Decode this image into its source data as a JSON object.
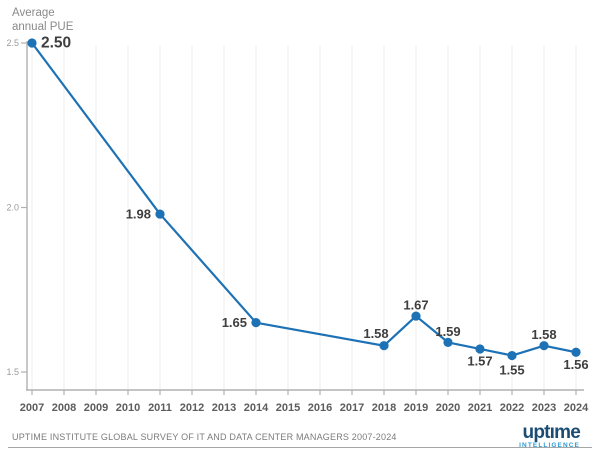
{
  "chart_data": {
    "type": "line",
    "title": "Average annual PUE",
    "title_lines": [
      "Average",
      "annual PUE"
    ],
    "xlabel": "",
    "ylabel": "Average annual PUE",
    "xlim": [
      2007,
      2024
    ],
    "ylim": [
      1.45,
      2.5
    ],
    "grid": "vertical-only",
    "legend": "none",
    "x_ticks": [
      2007,
      2008,
      2009,
      2010,
      2011,
      2012,
      2013,
      2014,
      2015,
      2016,
      2017,
      2018,
      2019,
      2020,
      2021,
      2022,
      2023,
      2024
    ],
    "y_ticks": [
      {
        "value": 2.5,
        "label": "2.5"
      },
      {
        "value": 2.0,
        "label": "2.0"
      },
      {
        "value": 1.5,
        "label": "1.5"
      }
    ],
    "series": [
      {
        "name": "Average annual PUE",
        "points": [
          {
            "year": 2007,
            "value": 2.5,
            "label": "2.50",
            "label_pos": "right-lg"
          },
          {
            "year": 2011,
            "value": 1.98,
            "label": "1.98",
            "label_pos": "left"
          },
          {
            "year": 2014,
            "value": 1.65,
            "label": "1.65",
            "label_pos": "left"
          },
          {
            "year": 2018,
            "value": 1.58,
            "label": "1.58",
            "label_pos": "above-left"
          },
          {
            "year": 2019,
            "value": 1.67,
            "label": "1.67",
            "label_pos": "above"
          },
          {
            "year": 2020,
            "value": 1.59,
            "label": "1.59",
            "label_pos": "above"
          },
          {
            "year": 2021,
            "value": 1.57,
            "label": "1.57",
            "label_pos": "below"
          },
          {
            "year": 2022,
            "value": 1.55,
            "label": "1.55",
            "label_pos": "below-far"
          },
          {
            "year": 2023,
            "value": 1.58,
            "label": "1.58",
            "label_pos": "above"
          },
          {
            "year": 2024,
            "value": 1.56,
            "label": "1.56",
            "label_pos": "below"
          }
        ]
      }
    ],
    "colors": {
      "line": "#1d71b5",
      "marker": "#1d71b5",
      "label": "#3e3e3e",
      "axis": "#b0b0b0",
      "grid": "#ededed",
      "tick_label": "#9b9b9b",
      "year_label": "#5c5c5c"
    }
  },
  "footer": {
    "source": "UPTIME INSTITUTE GLOBAL SURVEY OF IT AND DATA CENTER MANAGERS 2007-2024",
    "logo_main": "uptıme",
    "logo_sub": "INTELLIGENCE",
    "logo_navy": "#1b4d74",
    "logo_blue": "#2e9bd6"
  }
}
